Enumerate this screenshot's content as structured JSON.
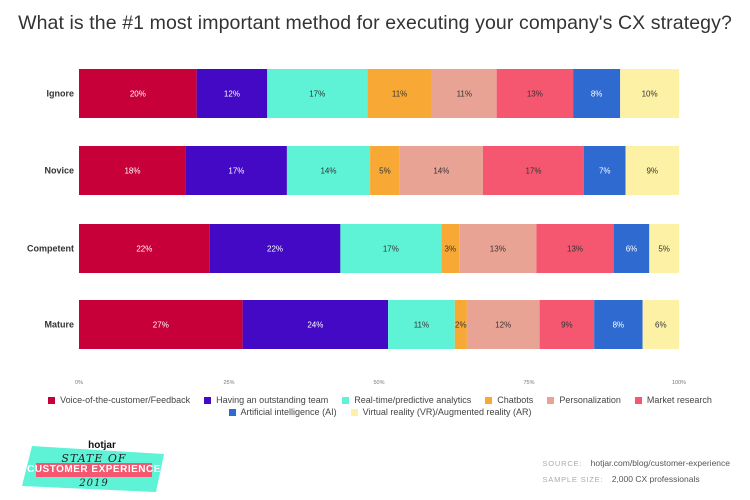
{
  "title": "What is the #1 most important method for executing your company's CX strategy?",
  "chart_data": {
    "type": "bar",
    "orientation": "horizontal",
    "stacked": true,
    "title": "What is the #1 most important method for executing your company's CX strategy?",
    "categories": [
      "Ignore",
      "Novice",
      "Competent",
      "Mature"
    ],
    "xlim": [
      0,
      100
    ],
    "x_ticks": [
      "0%",
      "25%",
      "50%",
      "75%",
      "100%"
    ],
    "series": [
      {
        "name": "Voice-of-the-customer/Feedback",
        "color": "#c70039",
        "text_color": "#ffffff",
        "values": [
          20,
          18,
          22,
          27
        ]
      },
      {
        "name": "Having an outstanding team",
        "color": "#4309c4",
        "text_color": "#ffffff",
        "values": [
          12,
          17,
          22,
          24
        ]
      },
      {
        "name": "Real-time/predictive analytics",
        "color": "#5ef2d6",
        "text_color": "#333333",
        "values": [
          17,
          14,
          17,
          11
        ]
      },
      {
        "name": "Chatbots",
        "color": "#f8a935",
        "text_color": "#333333",
        "values": [
          11,
          5,
          3,
          2
        ]
      },
      {
        "name": "Personalization",
        "color": "#e9a394",
        "text_color": "#333333",
        "values": [
          11,
          14,
          13,
          12
        ]
      },
      {
        "name": "Market research",
        "color": "#f4576f",
        "text_color": "#333333",
        "values": [
          13,
          17,
          13,
          9
        ]
      },
      {
        "name": "Artificial intelligence (AI)",
        "color": "#2f6ad0",
        "text_color": "#ffffff",
        "values": [
          8,
          7,
          6,
          8
        ]
      },
      {
        "name": "Virtual reality (VR)/Augmented reality (AR)",
        "color": "#fdf1a6",
        "text_color": "#333333",
        "values": [
          10,
          9,
          5,
          6
        ]
      }
    ]
  },
  "logo": {
    "brand": "hotjar",
    "line1": "STATE OF",
    "line2": "CUSTOMER EXPERIENCE",
    "line3": "2019"
  },
  "source": {
    "source_label": "SOURCE:",
    "source_value": "hotjar.com/blog/customer-experience",
    "sample_label": "SAMPLE SIZE:",
    "sample_value": "2,000 CX professionals"
  }
}
